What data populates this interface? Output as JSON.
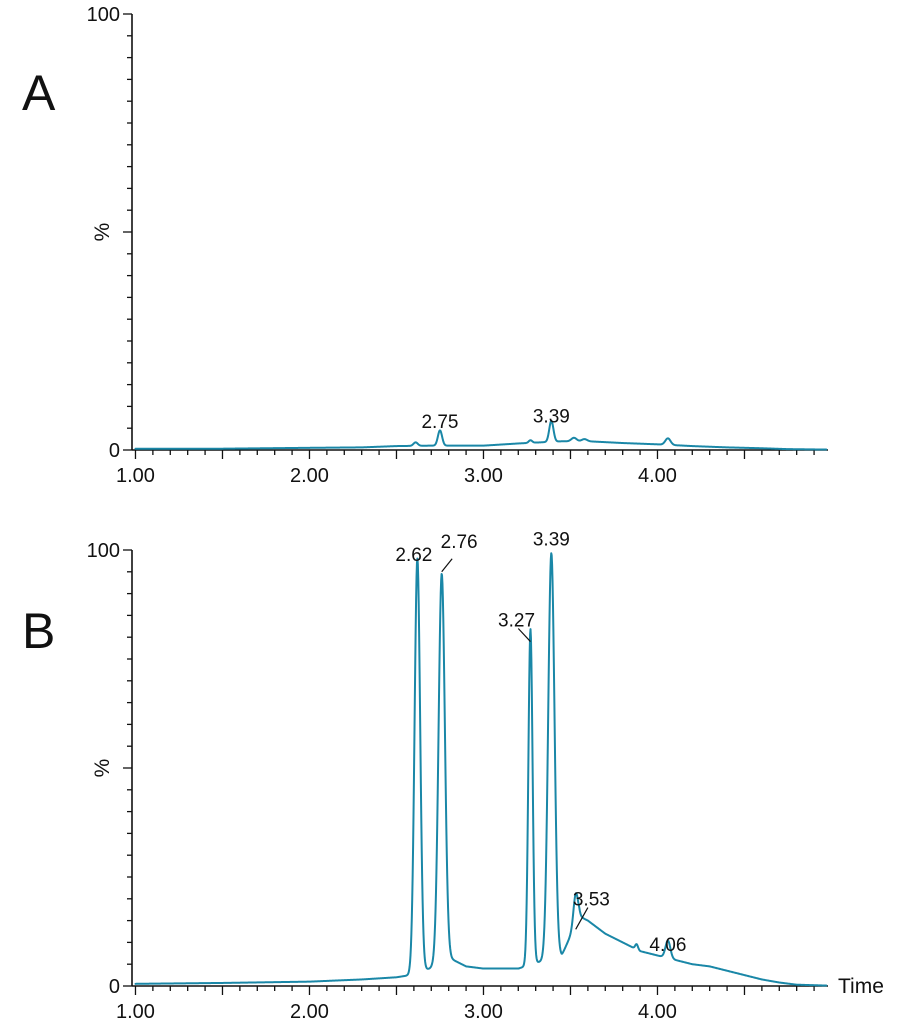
{
  "colors": {
    "trace": "#1a87a7",
    "axis": "#111111"
  },
  "chart_data": [
    {
      "type": "line",
      "panel_label": "A",
      "xlabel": "",
      "ylabel": "%",
      "xlim": [
        0.98,
        4.98
      ],
      "ylim": [
        0,
        100
      ],
      "x_ticks": [
        "1.00",
        "2.00",
        "3.00",
        "4.00"
      ],
      "y_ticks": [
        "0",
        "%",
        "100"
      ],
      "baseline": [
        [
          1.0,
          0.3
        ],
        [
          1.5,
          0.3
        ],
        [
          2.0,
          0.5
        ],
        [
          2.3,
          0.6
        ],
        [
          2.5,
          0.9
        ],
        [
          2.7,
          1.0
        ],
        [
          3.0,
          1.0
        ],
        [
          3.2,
          1.5
        ],
        [
          3.45,
          2.0
        ],
        [
          3.6,
          2.0
        ],
        [
          3.8,
          1.6
        ],
        [
          4.0,
          1.3
        ],
        [
          4.2,
          0.9
        ],
        [
          4.4,
          0.6
        ],
        [
          4.6,
          0.4
        ],
        [
          4.75,
          0.2
        ],
        [
          4.97,
          0.1
        ]
      ],
      "peaks": [
        {
          "x": 2.61,
          "h": 0.8,
          "w": 0.012
        },
        {
          "x": 2.75,
          "h": 3.5,
          "w": 0.012
        },
        {
          "x": 3.27,
          "h": 0.6,
          "w": 0.01
        },
        {
          "x": 3.39,
          "h": 4.8,
          "w": 0.012
        },
        {
          "x": 3.52,
          "h": 0.8,
          "w": 0.015
        },
        {
          "x": 3.58,
          "h": 0.5,
          "w": 0.015
        },
        {
          "x": 4.06,
          "h": 1.5,
          "w": 0.015
        }
      ],
      "peak_labels": [
        {
          "text": "2.75",
          "x": 2.75,
          "y": 5.0
        },
        {
          "text": "3.39",
          "x": 3.39,
          "y": 6.3
        }
      ]
    },
    {
      "type": "line",
      "panel_label": "B",
      "xlabel": "Time",
      "ylabel": "%",
      "xlim": [
        0.98,
        4.98
      ],
      "ylim": [
        0,
        100
      ],
      "x_ticks": [
        "1.00",
        "2.00",
        "3.00",
        "4.00"
      ],
      "y_ticks": [
        "0",
        "%",
        "100"
      ],
      "baseline": [
        [
          1.0,
          0.5
        ],
        [
          1.5,
          0.7
        ],
        [
          2.0,
          1.0
        ],
        [
          2.3,
          1.5
        ],
        [
          2.5,
          2.0
        ],
        [
          2.58,
          2.5
        ],
        [
          2.69,
          4.0
        ],
        [
          2.8,
          6.5
        ],
        [
          2.9,
          4.5
        ],
        [
          3.0,
          4.0
        ],
        [
          3.2,
          4.0
        ],
        [
          3.32,
          5.5
        ],
        [
          3.45,
          7.0
        ],
        [
          3.55,
          16.0
        ],
        [
          3.6,
          15.0
        ],
        [
          3.7,
          12.0
        ],
        [
          3.8,
          10.0
        ],
        [
          3.9,
          8.0
        ],
        [
          4.0,
          7.0
        ],
        [
          4.1,
          6.0
        ],
        [
          4.2,
          5.0
        ],
        [
          4.3,
          4.5
        ],
        [
          4.4,
          3.5
        ],
        [
          4.5,
          2.5
        ],
        [
          4.6,
          1.5
        ],
        [
          4.7,
          0.8
        ],
        [
          4.8,
          0.3
        ],
        [
          4.97,
          0.1
        ]
      ],
      "peaks": [
        {
          "x": 2.62,
          "h": 95,
          "w": 0.016
        },
        {
          "x": 2.76,
          "h": 89,
          "w": 0.018
        },
        {
          "x": 3.27,
          "h": 77,
          "w": 0.012
        },
        {
          "x": 3.39,
          "h": 93,
          "w": 0.018
        },
        {
          "x": 3.53,
          "h": 7,
          "w": 0.013
        },
        {
          "x": 3.88,
          "h": 1.2,
          "w": 0.008
        },
        {
          "x": 4.06,
          "h": 4,
          "w": 0.014
        }
      ],
      "peak_labels": [
        {
          "text": "2.62",
          "x": 2.6,
          "y": 97.5
        },
        {
          "text": "2.76",
          "x": 2.86,
          "y": 100.5,
          "leader": [
            [
              2.82,
              98.0
            ],
            [
              2.76,
              95.0
            ]
          ]
        },
        {
          "text": "3.27",
          "x": 3.19,
          "y": 82.5,
          "leader": [
            [
              3.2,
              82.0
            ],
            [
              3.27,
              79.0
            ]
          ]
        },
        {
          "text": "3.39",
          "x": 3.39,
          "y": 101.0
        },
        {
          "text": "3.53",
          "x": 3.62,
          "y": 18.5,
          "leader": [
            [
              3.6,
              18.0
            ],
            [
              3.53,
              13.0
            ]
          ]
        },
        {
          "text": "4.06",
          "x": 4.06,
          "y": 8.0
        }
      ]
    }
  ]
}
